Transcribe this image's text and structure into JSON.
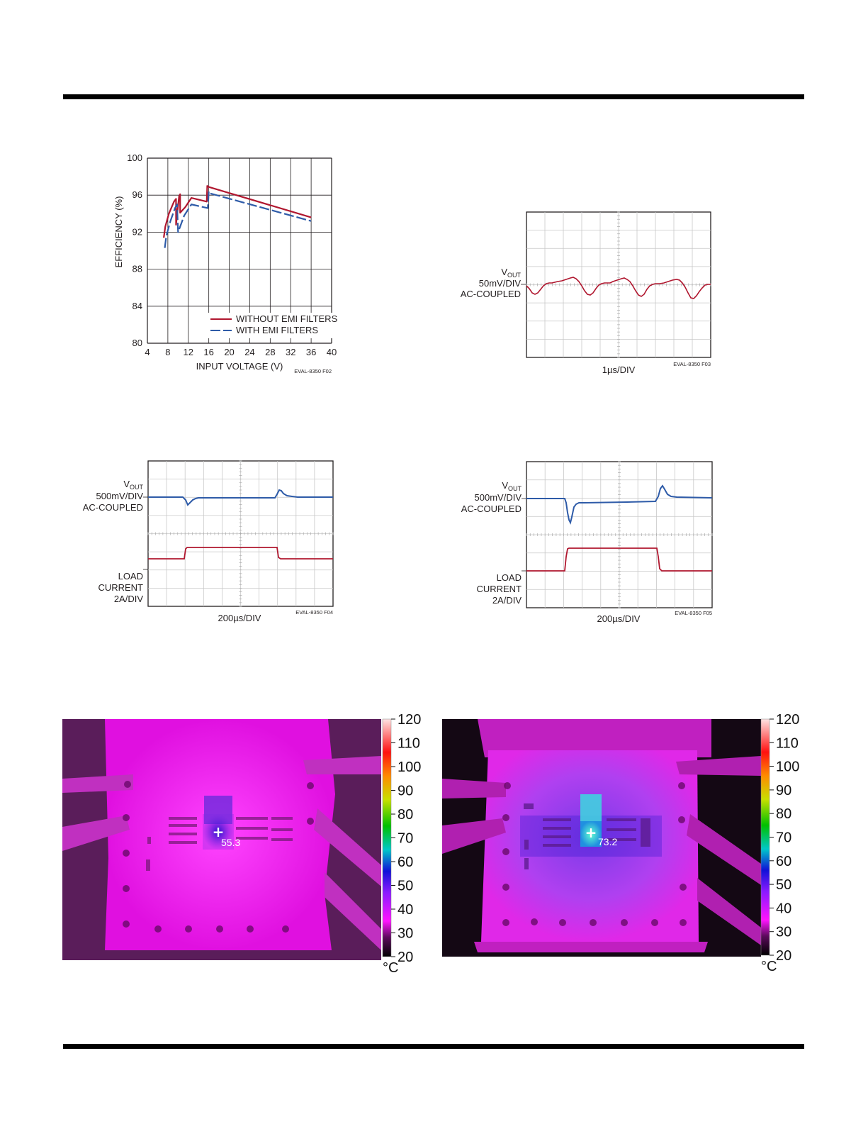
{
  "figures": {
    "f02": {
      "ylabel": "EFFICIENCY (%)",
      "xlabel": "INPUT VOLTAGE (V)",
      "code": "EVAL-8350 F02",
      "legend": [
        "WITHOUT EMI FILTERS",
        "WITH EMI FILTERS"
      ]
    },
    "f03": {
      "vout_label": "V",
      "vout_sub": "OUT",
      "scale": "50mV/DIV",
      "coupling": "AC-COUPLED",
      "time": "1µs/DIV",
      "code": "EVAL-8350 F03"
    },
    "f04": {
      "vout_label": "V",
      "vout_sub": "OUT",
      "scale": "500mV/DIV",
      "coupling": "AC-COUPLED",
      "load1": "LOAD",
      "load2": "CURRENT",
      "load3": "2A/DIV",
      "time": "200µs/DIV",
      "code": "EVAL-8350 F04"
    },
    "f05": {
      "vout_label": "V",
      "vout_sub": "OUT",
      "scale": "500mV/DIV",
      "coupling": "AC-COUPLED",
      "load1": "LOAD",
      "load2": "CURRENT",
      "load3": "2A/DIV",
      "time": "200µs/DIV",
      "code": "EVAL-8350 F05"
    },
    "thermal_left": {
      "reading": "55.3",
      "scale_ticks": [
        "120",
        "110",
        "100",
        "90",
        "80",
        "70",
        "60",
        "50",
        "40",
        "30",
        "20"
      ],
      "unit": "°C"
    },
    "thermal_right": {
      "reading": "73.2",
      "scale_ticks": [
        "120",
        "110",
        "100",
        "90",
        "80",
        "70",
        "60",
        "50",
        "40",
        "30",
        "20"
      ],
      "unit": "°C"
    }
  },
  "chart_data": [
    {
      "type": "line",
      "xlabel": "INPUT VOLTAGE (V)",
      "ylabel": "EFFICIENCY (%)",
      "xlim": [
        4,
        40
      ],
      "ylim": [
        80,
        100
      ],
      "xticks": [
        4,
        8,
        12,
        16,
        20,
        24,
        28,
        32,
        36,
        40
      ],
      "yticks": [
        80,
        84,
        88,
        92,
        96,
        100
      ],
      "grid": true,
      "legend_position": "bottom-right",
      "colors": {
        "without": "#b0172f",
        "with": "#2e5ba8"
      },
      "series": [
        {
          "name": "WITHOUT EMI FILTERS",
          "x": [
            7.2,
            7.5,
            8.2,
            9.2,
            9.6,
            9.6,
            10.2,
            10.4,
            10.4,
            11.4,
            12.6,
            15.6,
            15.7,
            15.9,
            36
          ],
          "y": [
            91.4,
            92.6,
            94.0,
            95.3,
            95.6,
            92.8,
            95.9,
            96.1,
            94.1,
            94.7,
            95.7,
            95.3,
            97.0,
            96.9,
            93.6
          ]
        },
        {
          "name": "WITH EMI FILTERS",
          "x": [
            7.4,
            7.7,
            8.5,
            9.4,
            9.8,
            10.0,
            10.2,
            11.2,
            12.6,
            15.8,
            16.0,
            16.2,
            36
          ],
          "y": [
            90.3,
            91.6,
            93.2,
            94.6,
            95.0,
            92.0,
            92.3,
            93.8,
            95.0,
            94.6,
            96.4,
            96.2,
            93.2
          ]
        }
      ]
    }
  ]
}
